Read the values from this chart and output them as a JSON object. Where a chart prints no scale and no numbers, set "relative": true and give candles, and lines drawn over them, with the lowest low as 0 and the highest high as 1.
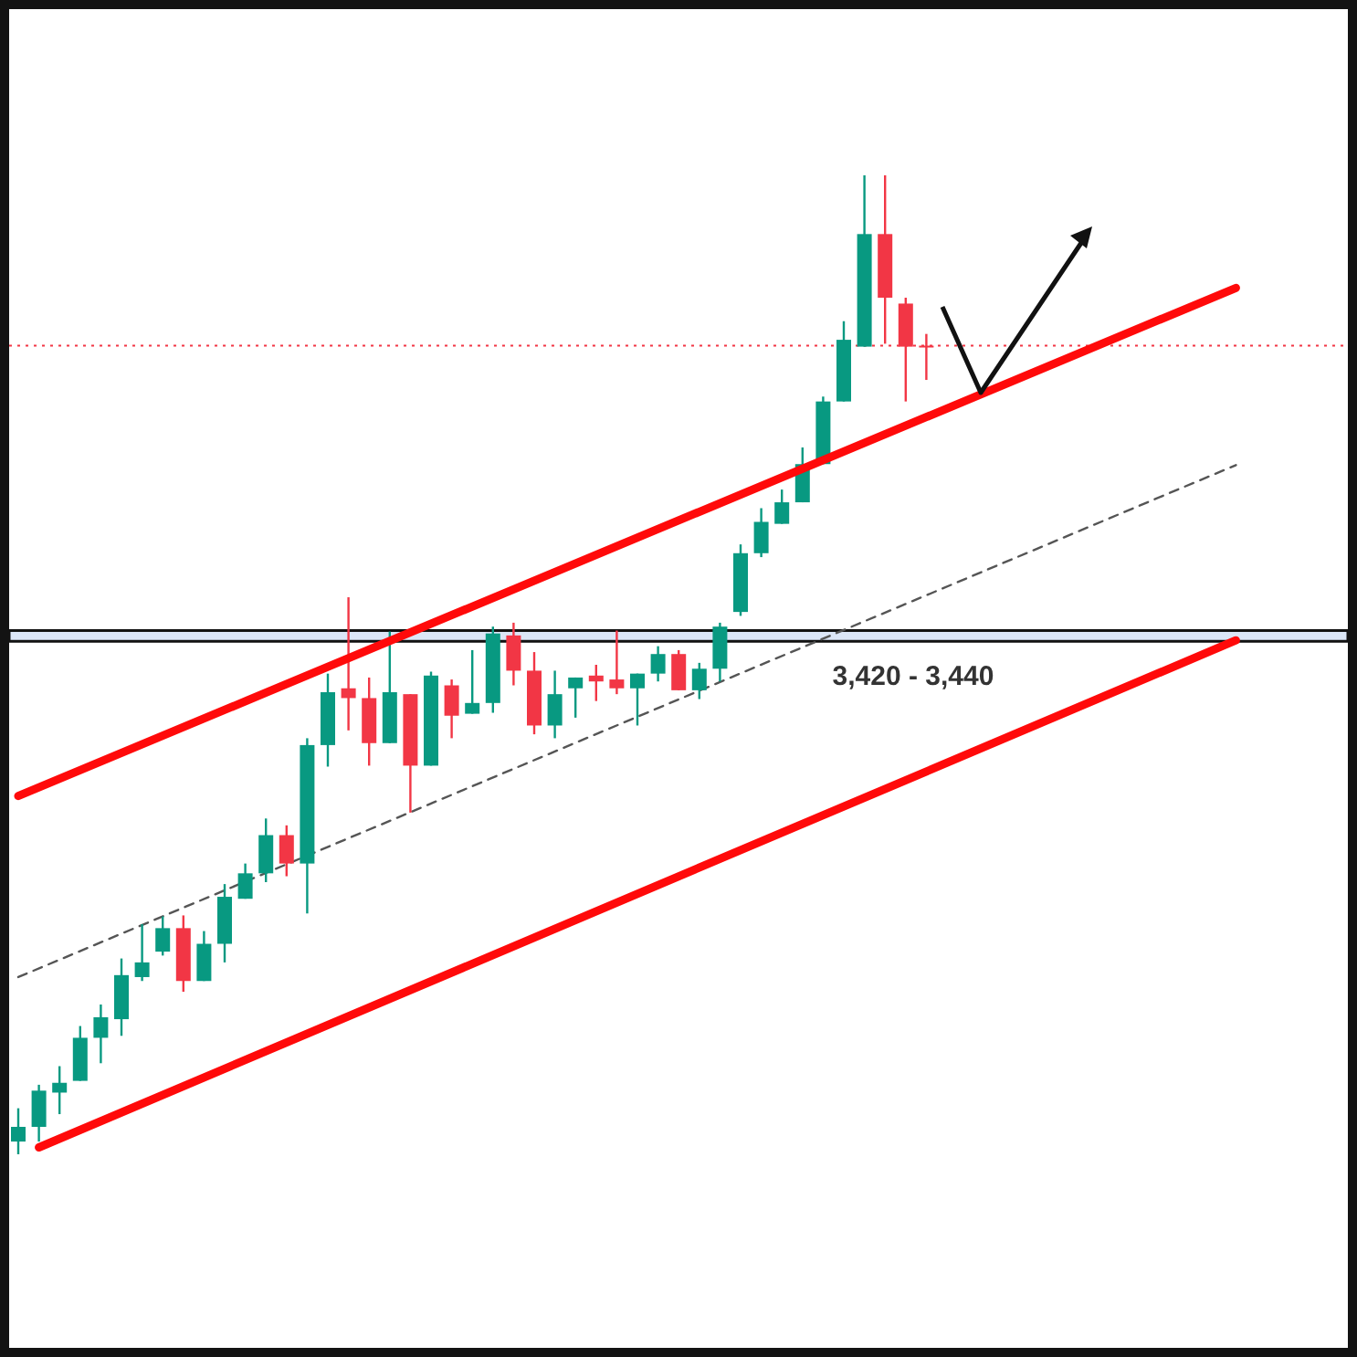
{
  "chart_data": {
    "type": "candlestick",
    "relative": true,
    "categories": [
      null,
      null,
      null,
      null,
      null,
      null,
      null,
      null,
      null,
      null,
      null,
      null,
      null,
      null,
      null,
      null,
      null,
      null,
      null,
      null,
      null,
      null,
      null,
      null,
      null,
      null,
      null,
      null,
      null,
      null,
      null,
      null,
      null,
      null,
      null,
      null,
      null,
      null,
      null,
      null,
      null,
      null,
      null,
      null,
      null,
      null,
      null,
      null,
      null,
      null,
      null,
      null,
      null,
      null,
      null,
      null,
      null,
      null,
      null,
      null,
      null,
      null,
      null,
      null,
      null
    ],
    "ohlc": [
      [
        0.013,
        0.047,
        0,
        0.028
      ],
      [
        0.028,
        0.071,
        0.013,
        0.065
      ],
      [
        0.063,
        0.09,
        0.041,
        0.073
      ],
      [
        0.075,
        0.131,
        0.075,
        0.119
      ],
      [
        0.119,
        0.153,
        0.093,
        0.14
      ],
      [
        0.138,
        0.2,
        0.121,
        0.183
      ],
      [
        0.181,
        0.235,
        0.177,
        0.196
      ],
      [
        0.207,
        0.243,
        0.203,
        0.231
      ],
      [
        0.231,
        0.244,
        0.166,
        0.177
      ],
      [
        0.177,
        0.228,
        0.177,
        0.215
      ],
      [
        0.215,
        0.276,
        0.196,
        0.263
      ],
      [
        0.261,
        0.297,
        0.261,
        0.287
      ],
      [
        0.287,
        0.343,
        0.278,
        0.326
      ],
      [
        0.326,
        0.336,
        0.284,
        0.297
      ],
      [
        0.297,
        0.425,
        0.246,
        0.418
      ],
      [
        0.418,
        0.491,
        0.396,
        0.472
      ],
      [
        0.476,
        0.569,
        0.433,
        0.466
      ],
      [
        0.466,
        0.487,
        0.397,
        0.42
      ],
      [
        0.42,
        0.534,
        0.42,
        0.472
      ],
      [
        0.47,
        0.47,
        0.349,
        0.397
      ],
      [
        0.397,
        0.493,
        0.397,
        0.489
      ],
      [
        0.479,
        0.485,
        0.425,
        0.448
      ],
      [
        0.45,
        0.515,
        0.45,
        0.461
      ],
      [
        0.461,
        0.539,
        0.451,
        0.532
      ],
      [
        0.53,
        0.543,
        0.479,
        0.494
      ],
      [
        0.494,
        0.513,
        0.429,
        0.438
      ],
      [
        0.438,
        0.494,
        0.425,
        0.47
      ],
      [
        0.476,
        0.487,
        0.446,
        0.487
      ],
      [
        0.489,
        0.5,
        0.463,
        0.483
      ],
      [
        0.485,
        0.535,
        0.47,
        0.476
      ],
      [
        0.476,
        0.491,
        0.438,
        0.491
      ],
      [
        0.491,
        0.519,
        0.483,
        0.511
      ],
      [
        0.511,
        0.515,
        0.474,
        0.474
      ],
      [
        0.474,
        0.502,
        0.465,
        0.496
      ],
      [
        0.496,
        0.543,
        0.483,
        0.539
      ],
      [
        0.554,
        0.623,
        0.55,
        0.614
      ],
      [
        0.614,
        0.66,
        0.61,
        0.646
      ],
      [
        0.644,
        0.679,
        0.644,
        0.666
      ],
      [
        0.666,
        0.722,
        0.666,
        0.705
      ],
      [
        0.705,
        0.774,
        0.705,
        0.769
      ],
      [
        0.769,
        0.851,
        0.769,
        0.832
      ],
      [
        0.825,
        1,
        0.825,
        0.94
      ],
      [
        0.94,
        1,
        0.828,
        0.875
      ],
      [
        0.869,
        0.875,
        0.769,
        0.825
      ],
      [
        0.826,
        0.838,
        0.791,
        0.825
      ],
      null,
      null,
      null,
      null,
      null,
      null,
      null,
      null,
      null,
      null,
      null,
      null,
      null,
      null,
      null,
      null,
      null,
      null,
      null,
      null
    ],
    "colors": [
      "#089981",
      "#089981",
      "#089981",
      "#089981",
      "#089981",
      "#089981",
      "#089981",
      "#089981",
      "#f23645",
      "#089981",
      "#089981",
      "#089981",
      "#089981",
      "#f23645",
      "#089981",
      "#089981",
      "#f23645",
      "#f23645",
      "#089981",
      "#f23645",
      "#089981",
      "#f23645",
      "#089981",
      "#089981",
      "#f23645",
      "#f23645",
      "#089981",
      "#089981",
      "#f23645",
      "#f23645",
      "#089981",
      "#089981",
      "#f23645",
      "#089981",
      "#089981",
      "#089981",
      "#089981",
      "#089981",
      "#089981",
      "#089981",
      "#089981",
      "#089981",
      "#f23645",
      "#f23645",
      "#f23645",
      null,
      null,
      null,
      null,
      null,
      null,
      null,
      null,
      null,
      null,
      null,
      null,
      null,
      null,
      null,
      null,
      null,
      null,
      null,
      null
    ],
    "series": [
      {
        "type": "line",
        "values": [
          0.366,
          null,
          null,
          null,
          null,
          null,
          null,
          null,
          null,
          null,
          null,
          null,
          null,
          null,
          null,
          null,
          null,
          null,
          null,
          null,
          null,
          null,
          null,
          null,
          null,
          null,
          null,
          null,
          null,
          null,
          null,
          null,
          null,
          null,
          null,
          null,
          null,
          null,
          null,
          null,
          null,
          null,
          null,
          null,
          null,
          null,
          null,
          null,
          null,
          null,
          null,
          null,
          null,
          null,
          null,
          null,
          null,
          null,
          null,
          0.885,
          null,
          null,
          null,
          null,
          null
        ],
        "color": "#ff0a0a",
        "line_style": "solid"
      },
      {
        "type": "line",
        "values": [
          null,
          0.007,
          null,
          null,
          null,
          null,
          null,
          null,
          null,
          null,
          null,
          null,
          null,
          null,
          null,
          null,
          null,
          null,
          null,
          null,
          null,
          null,
          null,
          null,
          null,
          null,
          null,
          null,
          null,
          null,
          null,
          null,
          null,
          null,
          null,
          null,
          null,
          null,
          null,
          null,
          null,
          null,
          null,
          null,
          null,
          null,
          null,
          null,
          null,
          null,
          null,
          null,
          null,
          null,
          null,
          null,
          null,
          null,
          null,
          0.525,
          null,
          null,
          null,
          null,
          null
        ],
        "color": "#ff0a0a",
        "line_style": "solid"
      },
      {
        "type": "line",
        "values": [
          0.181,
          null,
          null,
          null,
          null,
          null,
          null,
          null,
          null,
          null,
          null,
          null,
          null,
          null,
          null,
          null,
          null,
          null,
          null,
          null,
          null,
          null,
          null,
          null,
          null,
          null,
          null,
          null,
          null,
          null,
          null,
          null,
          null,
          null,
          null,
          null,
          null,
          null,
          null,
          null,
          null,
          null,
          null,
          null,
          null,
          null,
          null,
          null,
          null,
          null,
          null,
          null,
          null,
          null,
          null,
          null,
          null,
          null,
          null,
          0.704,
          null,
          null,
          null,
          null,
          null
        ],
        "color": "#555555",
        "line_style": "dashed"
      }
    ],
    "ref_lines": [
      {
        "axis": "y",
        "value": 0.826,
        "color": "#f23645",
        "line_style": "dotted"
      }
    ],
    "bands": [
      {
        "axis": "y",
        "from": 0.524,
        "to": 0.535,
        "label": "3,420 - 3,440",
        "color": "#dbe6f7"
      }
    ]
  }
}
